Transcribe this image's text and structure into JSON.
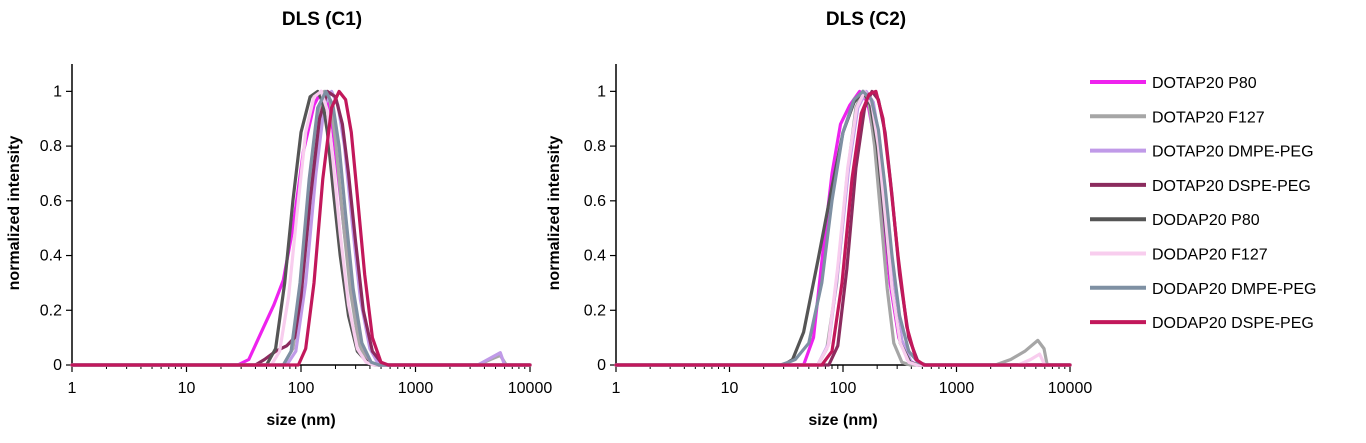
{
  "chart_data": [
    {
      "type": "line",
      "title": "DLS (C1)",
      "xlabel": "size (nm)",
      "ylabel": "normalized intensity",
      "xscale": "log",
      "xlim": [
        1,
        10000
      ],
      "ylim": [
        0,
        1.1
      ],
      "xticks": [
        "1",
        "10",
        "100",
        "1000",
        "10000"
      ],
      "yticks": [
        "0",
        "0.2",
        "0.4",
        "0.6",
        "0.8",
        "1"
      ],
      "grid": false,
      "series": [
        {
          "name": "DOTAP20 P80",
          "color": "#ee22ee",
          "x": [
            1,
            28,
            35,
            45,
            58,
            70,
            85,
            105,
            130,
            150,
            170,
            190,
            210,
            240,
            280,
            330,
            400,
            470,
            10000
          ],
          "y": [
            0,
            0,
            0.02,
            0.12,
            0.22,
            0.31,
            0.5,
            0.78,
            0.95,
            1.0,
            0.97,
            0.86,
            0.7,
            0.48,
            0.25,
            0.08,
            0.01,
            0,
            0
          ]
        },
        {
          "name": "DOTAP20 F127",
          "color": "#a6a6a6",
          "x": [
            1,
            70,
            85,
            100,
            120,
            140,
            160,
            180,
            200,
            230,
            270,
            320,
            380,
            450,
            3500,
            4500,
            5500,
            6200,
            10000
          ],
          "y": [
            0,
            0,
            0.06,
            0.28,
            0.65,
            0.92,
            1.0,
            0.96,
            0.82,
            0.55,
            0.27,
            0.08,
            0.01,
            0,
            0,
            0.02,
            0.035,
            0,
            0
          ]
        },
        {
          "name": "DOTAP20 DMPE-PEG",
          "color": "#c09ae8",
          "x": [
            1,
            75,
            90,
            110,
            135,
            160,
            185,
            210,
            240,
            280,
            330,
            400,
            480,
            3500,
            4500,
            5500,
            6000,
            10000
          ],
          "y": [
            0,
            0,
            0.05,
            0.3,
            0.7,
            0.95,
            1.0,
            0.95,
            0.8,
            0.52,
            0.24,
            0.06,
            0,
            0,
            0.025,
            0.045,
            0,
            0
          ]
        },
        {
          "name": "DOTAP20 DSPE-PEG",
          "color": "#8b2b5e",
          "x": [
            1,
            40,
            48,
            60,
            75,
            88,
            100,
            120,
            145,
            170,
            200,
            230,
            260,
            300,
            350,
            420,
            500,
            560,
            10000
          ],
          "y": [
            0,
            0,
            0.02,
            0.05,
            0.07,
            0.1,
            0.25,
            0.6,
            0.9,
            1.0,
            0.98,
            0.88,
            0.7,
            0.45,
            0.2,
            0.05,
            0.01,
            0,
            0
          ]
        },
        {
          "name": "DODAP20 P80",
          "color": "#555555",
          "x": [
            1,
            50,
            60,
            72,
            85,
            100,
            120,
            140,
            155,
            170,
            190,
            220,
            260,
            310,
            380,
            440,
            10000
          ],
          "y": [
            0,
            0,
            0.06,
            0.3,
            0.6,
            0.85,
            0.98,
            1.0,
            0.96,
            0.85,
            0.65,
            0.4,
            0.18,
            0.05,
            0.01,
            0,
            0
          ]
        },
        {
          "name": "DODAP20 F127",
          "color": "#f8cdee",
          "x": [
            1,
            55,
            65,
            78,
            92,
            110,
            130,
            150,
            170,
            190,
            220,
            260,
            310,
            370,
            430,
            10000
          ],
          "y": [
            0,
            0,
            0.05,
            0.25,
            0.55,
            0.85,
            0.98,
            1.0,
            0.93,
            0.75,
            0.48,
            0.22,
            0.06,
            0.01,
            0,
            0
          ]
        },
        {
          "name": "DODAP20 DMPE-PEG",
          "color": "#7e90a3",
          "x": [
            1,
            70,
            82,
            98,
            118,
            140,
            165,
            190,
            215,
            245,
            285,
            340,
            410,
            480,
            10000
          ],
          "y": [
            0,
            0,
            0.05,
            0.3,
            0.68,
            0.94,
            1.0,
            0.95,
            0.8,
            0.55,
            0.28,
            0.08,
            0.01,
            0,
            0
          ]
        },
        {
          "name": "DODAP20 DSPE-PEG",
          "color": "#c2185b",
          "x": [
            1,
            95,
            110,
            130,
            155,
            185,
            215,
            245,
            275,
            310,
            360,
            420,
            500,
            580,
            10000
          ],
          "y": [
            0,
            0,
            0.06,
            0.3,
            0.68,
            0.94,
            1.0,
            0.97,
            0.85,
            0.62,
            0.33,
            0.1,
            0.01,
            0,
            0
          ]
        }
      ]
    },
    {
      "type": "line",
      "title": "DLS (C2)",
      "xlabel": "size (nm)",
      "ylabel": "normalized intensity",
      "xscale": "log",
      "xlim": [
        1,
        10000
      ],
      "ylim": [
        0,
        1.1
      ],
      "xticks": [
        "1",
        "10",
        "100",
        "1000",
        "10000"
      ],
      "yticks": [
        "0",
        "0.2",
        "0.4",
        "0.6",
        "0.8",
        "1"
      ],
      "grid": false,
      "series": [
        {
          "name": "DOTAP20 P80",
          "color": "#ee22ee",
          "x": [
            1,
            45,
            55,
            66,
            80,
            95,
            115,
            140,
            165,
            190,
            220,
            260,
            310,
            370,
            450,
            520,
            10000
          ],
          "y": [
            0,
            0,
            0.1,
            0.4,
            0.7,
            0.88,
            0.95,
            1.0,
            0.96,
            0.82,
            0.58,
            0.3,
            0.1,
            0.02,
            0,
            0,
            0
          ]
        },
        {
          "name": "DOTAP20 F127",
          "color": "#a6a6a6",
          "x": [
            1,
            60,
            72,
            88,
            108,
            130,
            150,
            170,
            190,
            215,
            245,
            280,
            330,
            390,
            2200,
            3000,
            4000,
            5200,
            5900,
            6300,
            10000
          ],
          "y": [
            0,
            0,
            0.06,
            0.3,
            0.68,
            0.94,
            1.0,
            0.95,
            0.8,
            0.55,
            0.28,
            0.08,
            0.01,
            0,
            0,
            0.02,
            0.05,
            0.09,
            0.06,
            0,
            0
          ]
        },
        {
          "name": "DOTAP20 DMPE-PEG",
          "color": "#c09ae8",
          "x": [
            1,
            60,
            75,
            92,
            112,
            135,
            160,
            185,
            210,
            240,
            280,
            330,
            400,
            470,
            10000
          ],
          "y": [
            0,
            0,
            0.08,
            0.38,
            0.72,
            0.94,
            1.0,
            0.96,
            0.82,
            0.58,
            0.3,
            0.09,
            0.01,
            0,
            0
          ]
        },
        {
          "name": "DOTAP20 DSPE-PEG",
          "color": "#8b2b5e",
          "x": [
            1,
            75,
            90,
            108,
            130,
            155,
            180,
            205,
            235,
            270,
            315,
            380,
            460,
            540,
            10000
          ],
          "y": [
            0,
            0,
            0.07,
            0.35,
            0.72,
            0.94,
            1.0,
            0.97,
            0.85,
            0.62,
            0.33,
            0.1,
            0.01,
            0,
            0
          ]
        },
        {
          "name": "DODAP20 P80",
          "color": "#555555",
          "x": [
            1,
            30,
            36,
            45,
            60,
            80,
            100,
            125,
            150,
            175,
            200,
            230,
            270,
            320,
            390,
            460,
            10000
          ],
          "y": [
            0,
            0,
            0.02,
            0.12,
            0.38,
            0.65,
            0.85,
            0.96,
            1.0,
            0.95,
            0.8,
            0.55,
            0.28,
            0.08,
            0.01,
            0,
            0
          ]
        },
        {
          "name": "DODAP20 F127",
          "color": "#f8cdee",
          "x": [
            1,
            60,
            74,
            90,
            110,
            132,
            155,
            180,
            205,
            235,
            270,
            320,
            380,
            450,
            3500,
            4500,
            5400,
            6000,
            10000
          ],
          "y": [
            0,
            0,
            0.07,
            0.36,
            0.72,
            0.94,
            1.0,
            0.95,
            0.8,
            0.55,
            0.28,
            0.08,
            0.01,
            0,
            0,
            0.02,
            0.04,
            0,
            0
          ]
        },
        {
          "name": "DODAP20 DMPE-PEG",
          "color": "#7e90a3",
          "x": [
            1,
            28,
            33,
            38,
            50,
            65,
            80,
            100,
            125,
            150,
            178,
            205,
            235,
            270,
            315,
            380,
            460,
            540,
            10000
          ],
          "y": [
            0,
            0,
            0.01,
            0.02,
            0.08,
            0.3,
            0.6,
            0.85,
            0.97,
            1.0,
            0.97,
            0.86,
            0.65,
            0.4,
            0.18,
            0.05,
            0.01,
            0,
            0
          ]
        },
        {
          "name": "DODAP20 DSPE-PEG",
          "color": "#c2185b",
          "x": [
            1,
            65,
            80,
            98,
            120,
            145,
            170,
            195,
            225,
            260,
            305,
            365,
            440,
            520,
            600,
            10000
          ],
          "y": [
            0,
            0,
            0.05,
            0.3,
            0.68,
            0.92,
            0.99,
            1.0,
            0.9,
            0.68,
            0.4,
            0.14,
            0.02,
            0,
            0,
            0
          ]
        }
      ]
    }
  ],
  "legend": {
    "placement": "right",
    "entries": [
      {
        "label": "DOTAP20 P80",
        "color": "#ee22ee"
      },
      {
        "label": "DOTAP20 F127",
        "color": "#a6a6a6"
      },
      {
        "label": "DOTAP20 DMPE-PEG",
        "color": "#c09ae8"
      },
      {
        "label": "DOTAP20 DSPE-PEG",
        "color": "#8b2b5e"
      },
      {
        "label": "DODAP20 P80",
        "color": "#555555"
      },
      {
        "label": "DODAP20 F127",
        "color": "#f8cdee"
      },
      {
        "label": "DODAP20 DMPE-PEG",
        "color": "#7e90a3"
      },
      {
        "label": "DODAP20 DSPE-PEG",
        "color": "#c2185b"
      }
    ]
  }
}
